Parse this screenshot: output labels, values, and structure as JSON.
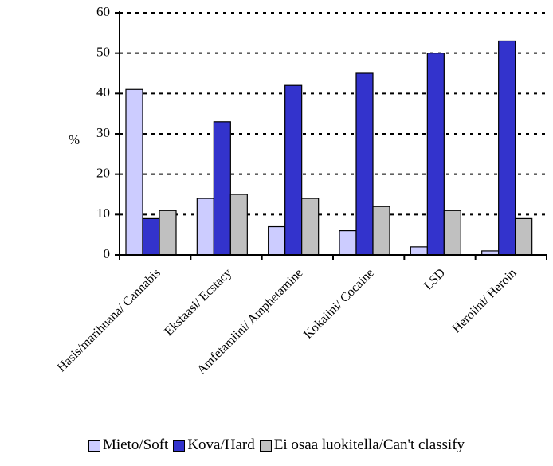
{
  "chart_data": {
    "type": "bar",
    "title": "",
    "xlabel": "",
    "ylabel": "%",
    "ylim": [
      0,
      60
    ],
    "yticks": [
      0,
      10,
      20,
      30,
      40,
      50,
      60
    ],
    "grid": true,
    "legend_position": "bottom",
    "categories": [
      "Hasis/marihuana/ Cannabis",
      "Ekstaasi/ Ecstacy",
      "Amfetamiini/ Amphetamine",
      "Kokaiini/ Cocaine",
      "LSD",
      "Heroiini/ Heroin"
    ],
    "series": [
      {
        "name": "Mieto/Soft",
        "color": "#ccccff",
        "values": [
          41,
          14,
          7,
          6,
          2,
          1
        ]
      },
      {
        "name": "Kova/Hard",
        "color": "#3333cc",
        "values": [
          9,
          33,
          42,
          45,
          50,
          53
        ]
      },
      {
        "name": "Ei osaa luokitella/Can't classify",
        "color": "#c0c0c0",
        "values": [
          11,
          15,
          14,
          12,
          11,
          9
        ]
      }
    ]
  }
}
